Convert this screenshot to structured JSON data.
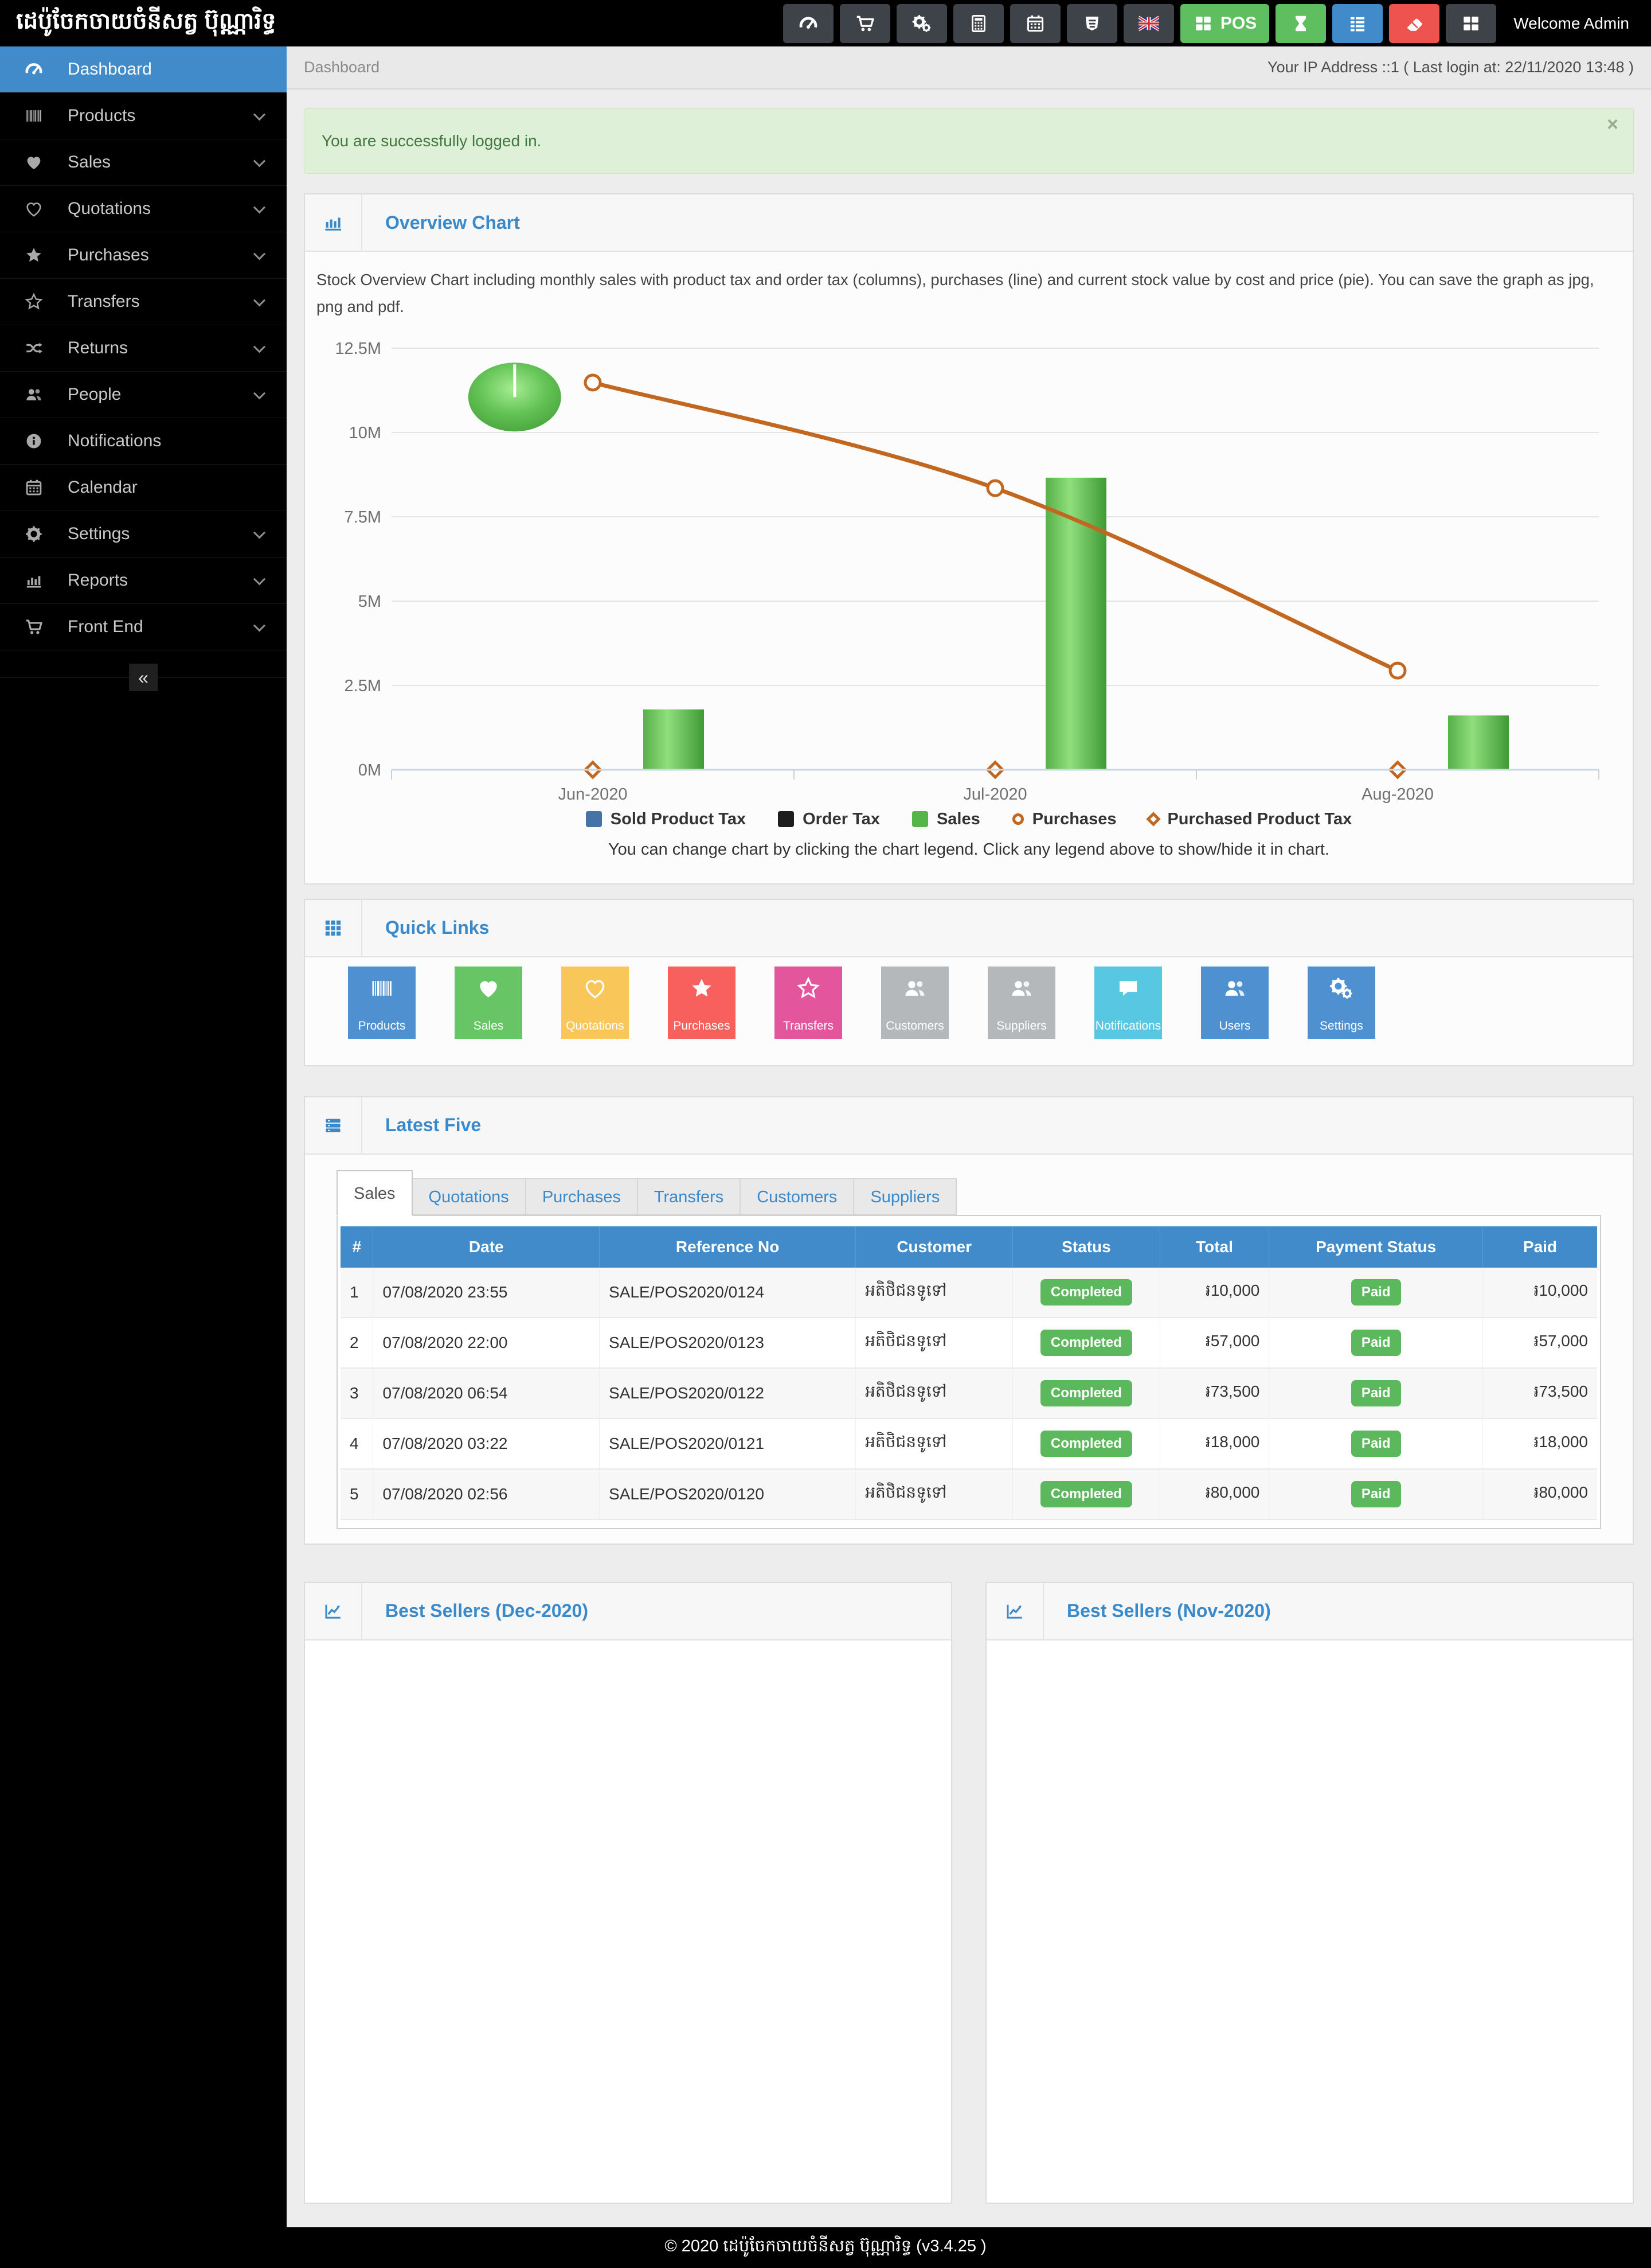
{
  "app": {
    "title": "ដេប៉ូចែកចាយចំនីសត្វ ប៊ុណ្ណារិទ្ធ",
    "footer": "© 2020 ដេប៉ូចែកចាយចំនីសត្វ ប៊ុណ្ណារិទ្ធ (v3.4.25 )"
  },
  "topbar": {
    "welcome": "Welcome Admin",
    "buttons": [
      {
        "name": "dashboard",
        "icon": "gauge",
        "bg": "#3d4349",
        "label": ""
      },
      {
        "name": "cart",
        "icon": "cart",
        "bg": "#3d4349",
        "label": ""
      },
      {
        "name": "settings",
        "icon": "cogs",
        "bg": "#3d4349",
        "label": ""
      },
      {
        "name": "calculator",
        "icon": "calculator",
        "bg": "#3d4349",
        "label": ""
      },
      {
        "name": "calendar",
        "icon": "calendar",
        "bg": "#3d4349",
        "label": ""
      },
      {
        "name": "style",
        "icon": "css3",
        "bg": "#3d4349",
        "label": ""
      },
      {
        "name": "language-english",
        "icon": "flag-uk",
        "bg": "#3d4349",
        "label": ""
      },
      {
        "name": "pos",
        "icon": "th-large",
        "bg": "#5fbe60",
        "label": "POS"
      },
      {
        "name": "opened-bills",
        "icon": "hourglass",
        "bg": "#5fbe60",
        "label": ""
      },
      {
        "name": "registers",
        "icon": "list",
        "bg": "#428bca",
        "label": ""
      },
      {
        "name": "reset",
        "icon": "eraser",
        "bg": "#ef534f",
        "label": ""
      },
      {
        "name": "apps",
        "icon": "th-large",
        "bg": "#3d4349",
        "label": ""
      }
    ]
  },
  "sidebar": {
    "collapse_label": "«",
    "items": [
      {
        "label": "Dashboard",
        "icon": "gauge",
        "active": true,
        "expandable": false
      },
      {
        "label": "Products",
        "icon": "barcode",
        "active": false,
        "expandable": true
      },
      {
        "label": "Sales",
        "icon": "heart",
        "active": false,
        "expandable": true
      },
      {
        "label": "Quotations",
        "icon": "heart-o",
        "active": false,
        "expandable": true
      },
      {
        "label": "Purchases",
        "icon": "star",
        "active": false,
        "expandable": true
      },
      {
        "label": "Transfers",
        "icon": "star-o",
        "active": false,
        "expandable": true
      },
      {
        "label": "Returns",
        "icon": "shuffle",
        "active": false,
        "expandable": true
      },
      {
        "label": "People",
        "icon": "users",
        "active": false,
        "expandable": true
      },
      {
        "label": "Notifications",
        "icon": "info",
        "active": false,
        "expandable": false
      },
      {
        "label": "Calendar",
        "icon": "calendar",
        "active": false,
        "expandable": false
      },
      {
        "label": "Settings",
        "icon": "gear",
        "active": false,
        "expandable": true
      },
      {
        "label": "Reports",
        "icon": "bar-chart",
        "active": false,
        "expandable": true
      },
      {
        "label": "Front End",
        "icon": "cart",
        "active": false,
        "expandable": true
      }
    ]
  },
  "breadcrumb": {
    "title": "Dashboard",
    "meta": "Your IP Address ::1 ( Last login at: 22/11/2020 13:48 )"
  },
  "alert": {
    "text": "You are successfully logged in.",
    "close": "×"
  },
  "overview": {
    "title": "Overview Chart",
    "description": "Stock Overview Chart including monthly sales with product tax and order tax (columns), purchases (line) and current stock value by cost and price (pie). You can save the graph as jpg, png and pdf.",
    "note": "You can change chart by clicking the chart legend. Click any legend above to show/hide it in chart."
  },
  "chart_data": {
    "type": "mixed",
    "categories": [
      "Jun-2020",
      "Jul-2020",
      "Aug-2020"
    ],
    "series": [
      {
        "name": "Sold Product Tax",
        "type": "column",
        "marker": "square",
        "color": "#4572a7",
        "values": [
          0,
          0,
          0
        ]
      },
      {
        "name": "Order Tax",
        "type": "column",
        "marker": "square",
        "color": "#1d1d1d",
        "values": [
          0,
          0,
          0
        ]
      },
      {
        "name": "Sales",
        "type": "column",
        "marker": "square",
        "color": "#55b54a",
        "values": [
          1790000,
          8660000,
          1610000
        ]
      },
      {
        "name": "Purchases",
        "type": "spline",
        "marker": "circle",
        "color": "#c2671f",
        "values": [
          11480000,
          8350000,
          2940000
        ]
      },
      {
        "name": "Purchased Product Tax",
        "type": "spline",
        "marker": "diamond",
        "color": "#c2671f",
        "values": [
          0,
          0,
          0
        ]
      }
    ],
    "pie": {
      "label": "current stock value",
      "color": "#55b54a",
      "x_frac": 0.102,
      "y_value": 11050000,
      "rx": 81,
      "ry": 60
    },
    "ylim": [
      0,
      12500000
    ],
    "yticks": [
      {
        "v": 12500000,
        "label": "12.5M"
      },
      {
        "v": 10000000,
        "label": "10M"
      },
      {
        "v": 7500000,
        "label": "7.5M"
      },
      {
        "v": 5000000,
        "label": "5M"
      },
      {
        "v": 2500000,
        "label": "2.5M"
      },
      {
        "v": 0,
        "label": "0M"
      }
    ],
    "grid": true,
    "legend_position": "bottom"
  },
  "quick_links": {
    "title": "Quick Links",
    "tiles": [
      {
        "label": "Products",
        "icon": "barcode",
        "color": "#4e90d0"
      },
      {
        "label": "Sales",
        "icon": "heart",
        "color": "#67c565"
      },
      {
        "label": "Quotations",
        "icon": "heart-o",
        "color": "#f9c659"
      },
      {
        "label": "Purchases",
        "icon": "star",
        "color": "#f8605e"
      },
      {
        "label": "Transfers",
        "icon": "star-o",
        "color": "#e3569e"
      },
      {
        "label": "Customers",
        "icon": "users",
        "color": "#b5b8bb"
      },
      {
        "label": "Suppliers",
        "icon": "users",
        "color": "#b5b8bb"
      },
      {
        "label": "Notifications",
        "icon": "comment",
        "color": "#58c7e1"
      },
      {
        "label": "Users",
        "icon": "users",
        "color": "#4e90d0"
      },
      {
        "label": "Settings",
        "icon": "cogs",
        "color": "#4e90d0"
      }
    ]
  },
  "latest_five": {
    "title": "Latest Five",
    "tabs": [
      "Sales",
      "Quotations",
      "Purchases",
      "Transfers",
      "Customers",
      "Suppliers"
    ],
    "active_tab": "Sales",
    "table": {
      "headers": [
        "#",
        "Date",
        "Reference No",
        "Customer",
        "Status",
        "Total",
        "Payment Status",
        "Paid"
      ],
      "rows": [
        {
          "no": "1",
          "date": "07/08/2020 23:55",
          "ref": "SALE/POS2020/0124",
          "customer": "អតិថិជនទូទៅ",
          "status": "Completed",
          "total": "៛10,000",
          "payment_status": "Paid",
          "paid": "៛10,000"
        },
        {
          "no": "2",
          "date": "07/08/2020 22:00",
          "ref": "SALE/POS2020/0123",
          "customer": "អតិថិជនទូទៅ",
          "status": "Completed",
          "total": "៛57,000",
          "payment_status": "Paid",
          "paid": "៛57,000"
        },
        {
          "no": "3",
          "date": "07/08/2020 06:54",
          "ref": "SALE/POS2020/0122",
          "customer": "អតិថិជនទូទៅ",
          "status": "Completed",
          "total": "៛73,500",
          "payment_status": "Paid",
          "paid": "៛73,500"
        },
        {
          "no": "4",
          "date": "07/08/2020 03:22",
          "ref": "SALE/POS2020/0121",
          "customer": "អតិថិជនទូទៅ",
          "status": "Completed",
          "total": "៛18,000",
          "payment_status": "Paid",
          "paid": "៛18,000"
        },
        {
          "no": "5",
          "date": "07/08/2020 02:56",
          "ref": "SALE/POS2020/0120",
          "customer": "អតិថិជនទូទៅ",
          "status": "Completed",
          "total": "៛80,000",
          "payment_status": "Paid",
          "paid": "៛80,000"
        }
      ]
    }
  },
  "best_sellers": [
    {
      "title": "Best Sellers (Dec-2020)"
    },
    {
      "title": "Best Sellers (Nov-2020)"
    }
  ],
  "colors": {
    "accent": "#428bca",
    "success": "#5cb85c",
    "line": "#c2671f",
    "topbar_dark": "#3d4349",
    "topbar_green": "#5fbe60",
    "topbar_blue": "#428bca",
    "topbar_red": "#ef534f"
  }
}
